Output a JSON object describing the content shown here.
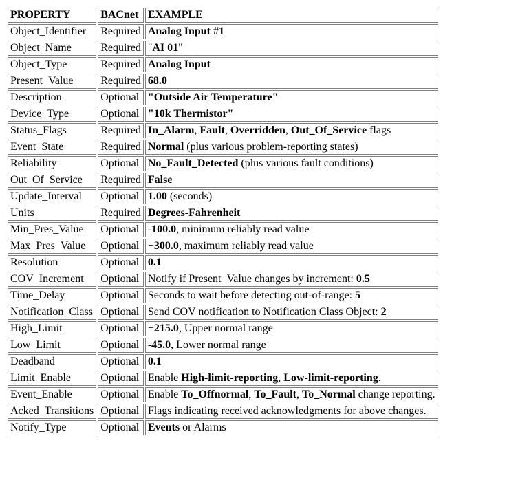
{
  "table": {
    "columns": [
      "PROPERTY",
      "BACnet",
      "EXAMPLE"
    ],
    "rows": [
      {
        "property": "Object_Identifier",
        "bacnet": "Required",
        "example": [
          {
            "t": "Analog Input #1",
            "b": true
          }
        ]
      },
      {
        "property": "Object_Name",
        "bacnet": "Required",
        "example": [
          {
            "t": "\"",
            "b": false
          },
          {
            "t": "AI 01",
            "b": true
          },
          {
            "t": "\"",
            "b": false
          }
        ]
      },
      {
        "property": "Object_Type",
        "bacnet": "Required",
        "example": [
          {
            "t": "Analog Input",
            "b": true
          }
        ]
      },
      {
        "property": "Present_Value",
        "bacnet": "Required",
        "example": [
          {
            "t": "68.0",
            "b": true
          }
        ]
      },
      {
        "property": "Description",
        "bacnet": "Optional",
        "example": [
          {
            "t": "\"Outside Air Temperature\"",
            "b": true
          }
        ]
      },
      {
        "property": "Device_Type",
        "bacnet": "Optional",
        "example": [
          {
            "t": "\"10k Thermistor\"",
            "b": true
          }
        ]
      },
      {
        "property": "Status_Flags",
        "bacnet": "Required",
        "example": [
          {
            "t": "In_Alarm",
            "b": true
          },
          {
            "t": ", ",
            "b": false
          },
          {
            "t": "Fault",
            "b": true
          },
          {
            "t": ", ",
            "b": false
          },
          {
            "t": "Overridden",
            "b": true
          },
          {
            "t": ", ",
            "b": false
          },
          {
            "t": "Out_Of_Service",
            "b": true
          },
          {
            "t": " flags",
            "b": false
          }
        ]
      },
      {
        "property": "Event_State",
        "bacnet": "Required",
        "example": [
          {
            "t": "Normal",
            "b": true
          },
          {
            "t": " (plus various problem-reporting states)",
            "b": false
          }
        ]
      },
      {
        "property": "Reliability",
        "bacnet": "Optional",
        "example": [
          {
            "t": "No_Fault_Detected",
            "b": true
          },
          {
            "t": " (plus various fault conditions)",
            "b": false
          }
        ]
      },
      {
        "property": "Out_Of_Service",
        "bacnet": "Required",
        "example": [
          {
            "t": "False",
            "b": true
          }
        ]
      },
      {
        "property": "Update_Interval",
        "bacnet": "Optional",
        "example": [
          {
            "t": "1.00",
            "b": true
          },
          {
            "t": " (seconds)",
            "b": false
          }
        ]
      },
      {
        "property": "Units",
        "bacnet": "Required",
        "example": [
          {
            "t": "Degrees",
            "b": true
          },
          {
            "t": "-",
            "b": false
          },
          {
            "t": "Fahrenheit",
            "b": true
          }
        ]
      },
      {
        "property": "Min_Pres_Value",
        "bacnet": "Optional",
        "example": [
          {
            "t": "-",
            "b": false
          },
          {
            "t": "100.0",
            "b": true
          },
          {
            "t": ", minimum reliably read value",
            "b": false
          }
        ]
      },
      {
        "property": "Max_Pres_Value",
        "bacnet": "Optional",
        "example": [
          {
            "t": "+",
            "b": false
          },
          {
            "t": "300.0",
            "b": true
          },
          {
            "t": ", maximum reliably read value",
            "b": false
          }
        ]
      },
      {
        "property": "Resolution",
        "bacnet": "Optional",
        "example": [
          {
            "t": "0.1",
            "b": true
          }
        ]
      },
      {
        "property": "COV_Increment",
        "bacnet": "Optional",
        "example": [
          {
            "t": "Notify if Present_Value changes by increment: ",
            "b": false
          },
          {
            "t": "0.5",
            "b": true
          }
        ]
      },
      {
        "property": "Time_Delay",
        "bacnet": "Optional",
        "example": [
          {
            "t": "Seconds to wait before detecting out-of-range: ",
            "b": false
          },
          {
            "t": "5",
            "b": true
          }
        ]
      },
      {
        "property": "Notification_Class",
        "bacnet": "Optional",
        "example": [
          {
            "t": "Send COV notification to Notification Class Object: ",
            "b": false
          },
          {
            "t": "2",
            "b": true
          }
        ]
      },
      {
        "property": "High_Limit",
        "bacnet": "Optional",
        "example": [
          {
            "t": "+",
            "b": false
          },
          {
            "t": "215.0",
            "b": true
          },
          {
            "t": ", Upper normal range",
            "b": false
          }
        ]
      },
      {
        "property": "Low_Limit",
        "bacnet": "Optional",
        "example": [
          {
            "t": "-",
            "b": false
          },
          {
            "t": "45.0",
            "b": true
          },
          {
            "t": ", Lower normal range",
            "b": false
          }
        ]
      },
      {
        "property": "Deadband",
        "bacnet": "Optional",
        "example": [
          {
            "t": "0.1",
            "b": true
          }
        ]
      },
      {
        "property": "Limit_Enable",
        "bacnet": "Optional",
        "example": [
          {
            "t": "Enable ",
            "b": false
          },
          {
            "t": "High-limit-reporting",
            "b": true
          },
          {
            "t": ", ",
            "b": false
          },
          {
            "t": "Low-limit-reporting",
            "b": true
          },
          {
            "t": ".",
            "b": false
          }
        ]
      },
      {
        "property": "Event_Enable",
        "bacnet": "Optional",
        "example": [
          {
            "t": "Enable ",
            "b": false
          },
          {
            "t": "To_Offnormal",
            "b": true
          },
          {
            "t": ", ",
            "b": false
          },
          {
            "t": "To_Fault",
            "b": true
          },
          {
            "t": ", ",
            "b": false
          },
          {
            "t": "To_Normal",
            "b": true
          },
          {
            "t": " change reporting.",
            "b": false
          }
        ]
      },
      {
        "property": "Acked_Transitions",
        "bacnet": "Optional",
        "example": [
          {
            "t": "Flags indicating received acknowledgments for above changes.",
            "b": false
          }
        ]
      },
      {
        "property": "Notify_Type",
        "bacnet": "Optional",
        "example": [
          {
            "t": "Events",
            "b": true
          },
          {
            "t": " or Alarms",
            "b": false
          }
        ]
      }
    ]
  }
}
